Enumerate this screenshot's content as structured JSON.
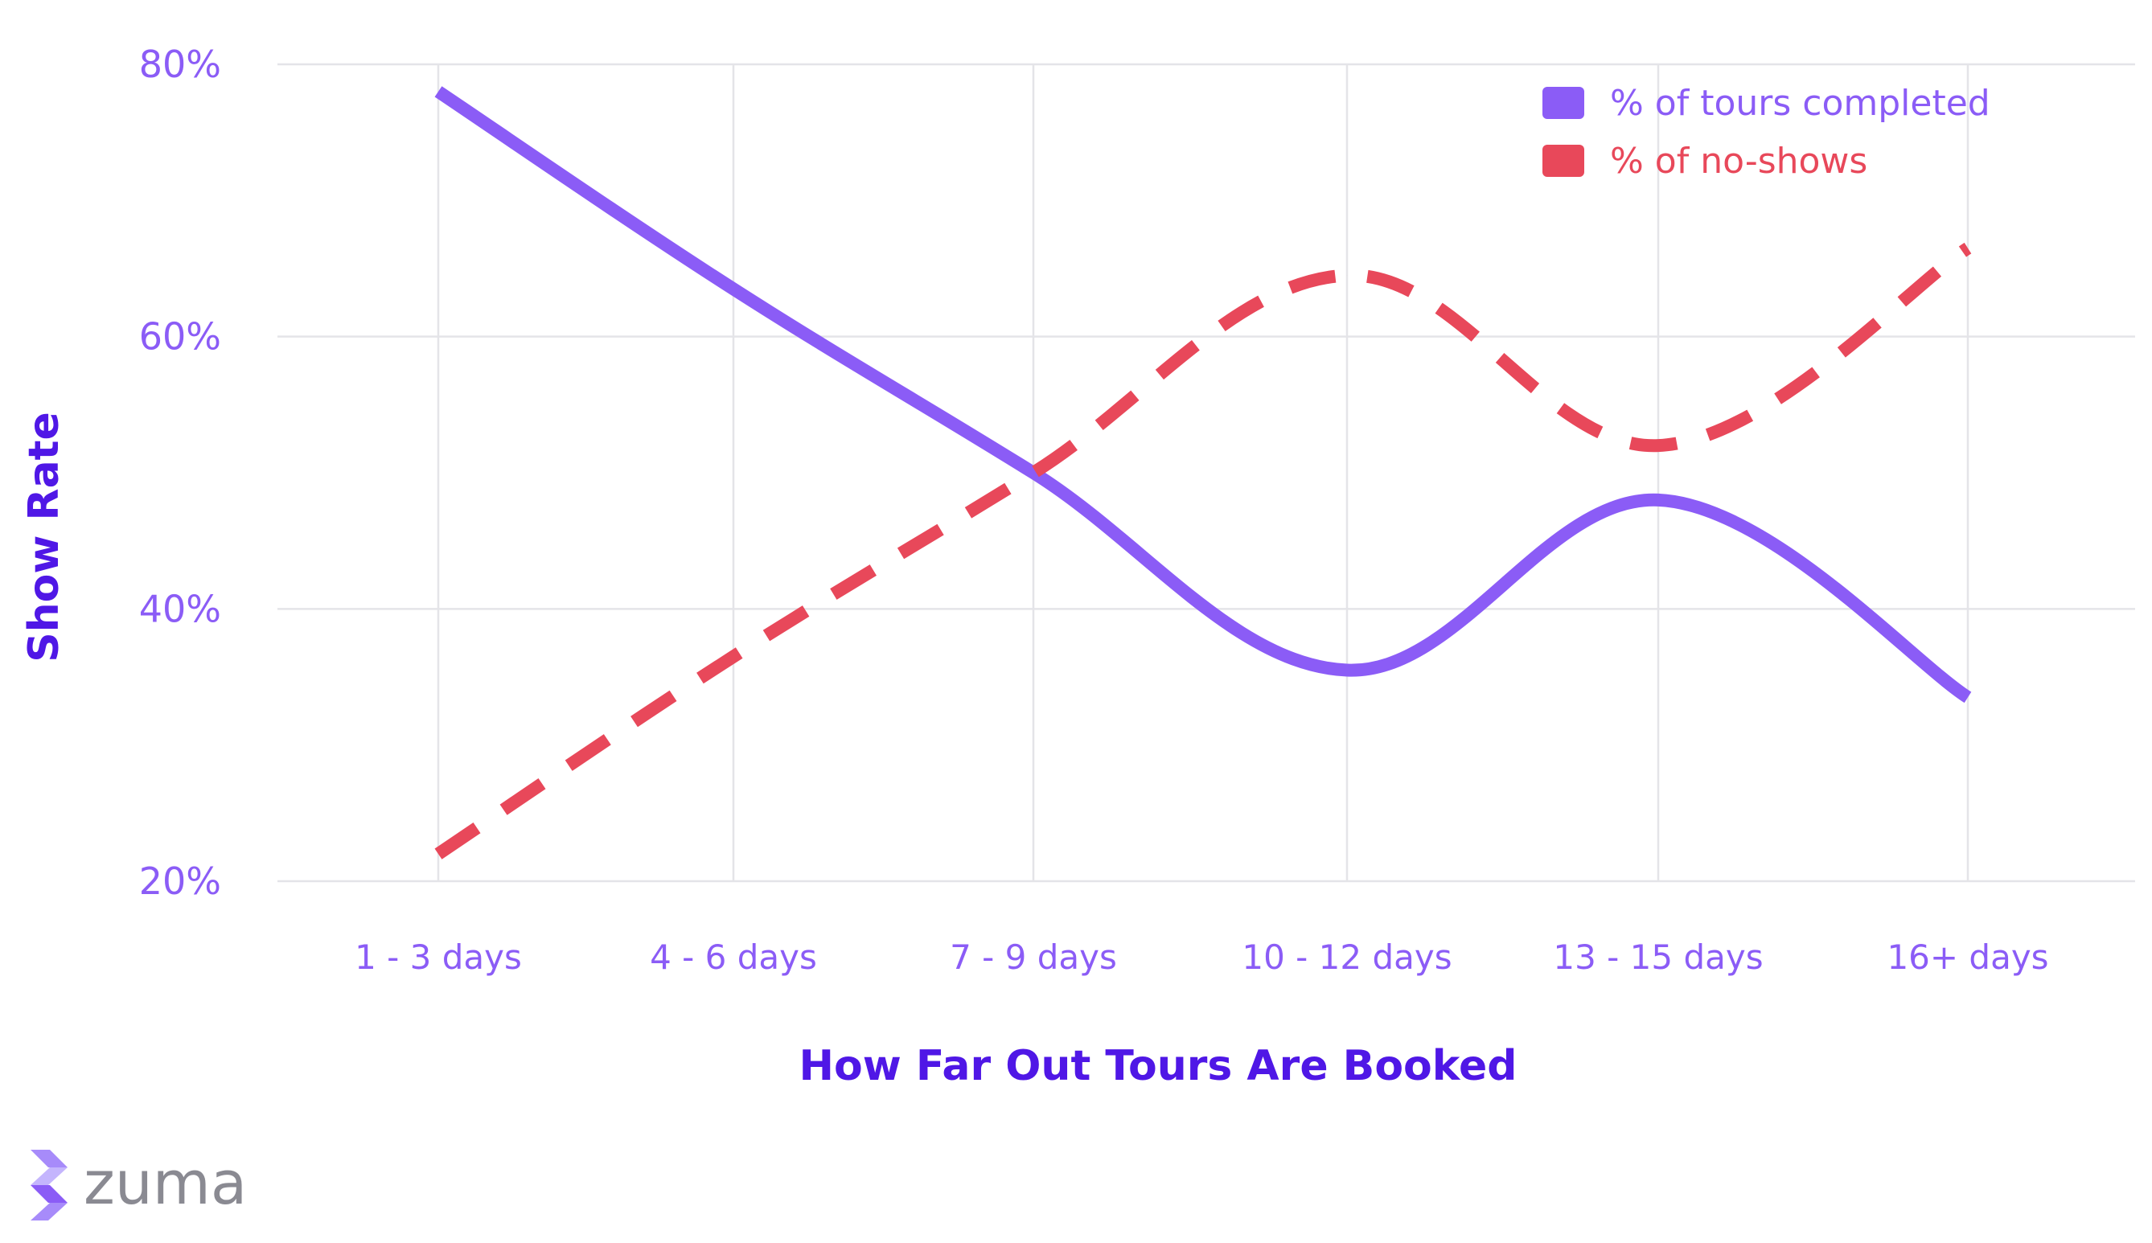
{
  "chart_data": {
    "type": "line",
    "title": "",
    "xlabel": "How Far Out Tours Are Booked",
    "ylabel": "Show Rate",
    "categories": [
      "1 - 3 days",
      "4 - 6 days",
      "7 - 9 days",
      "10 - 12 days",
      "13 - 15 days",
      "16+ days"
    ],
    "ylim": [
      20,
      80
    ],
    "yticks": [
      "20%",
      "40%",
      "60%",
      "80%"
    ],
    "ytick_values": [
      20,
      40,
      60,
      80
    ],
    "grid": true,
    "legend_position": "top-right",
    "series": [
      {
        "name": "% of tours completed",
        "values": [
          78,
          63.5,
          50,
          35.5,
          48,
          33.5
        ],
        "color": "#8b5cf6",
        "style": "solid"
      },
      {
        "name": "% of no-shows",
        "values": [
          22,
          36.5,
          50,
          64.5,
          52,
          66.5
        ],
        "color": "#e8485a",
        "style": "dashed"
      }
    ]
  },
  "logo": {
    "text": "zuma",
    "icon": "zuma-logo-icon"
  },
  "colors": {
    "accent": "#8b5cf6",
    "axis_title": "#4f17e6",
    "no_show": "#e8485a",
    "grid": "#e4e4e8"
  }
}
